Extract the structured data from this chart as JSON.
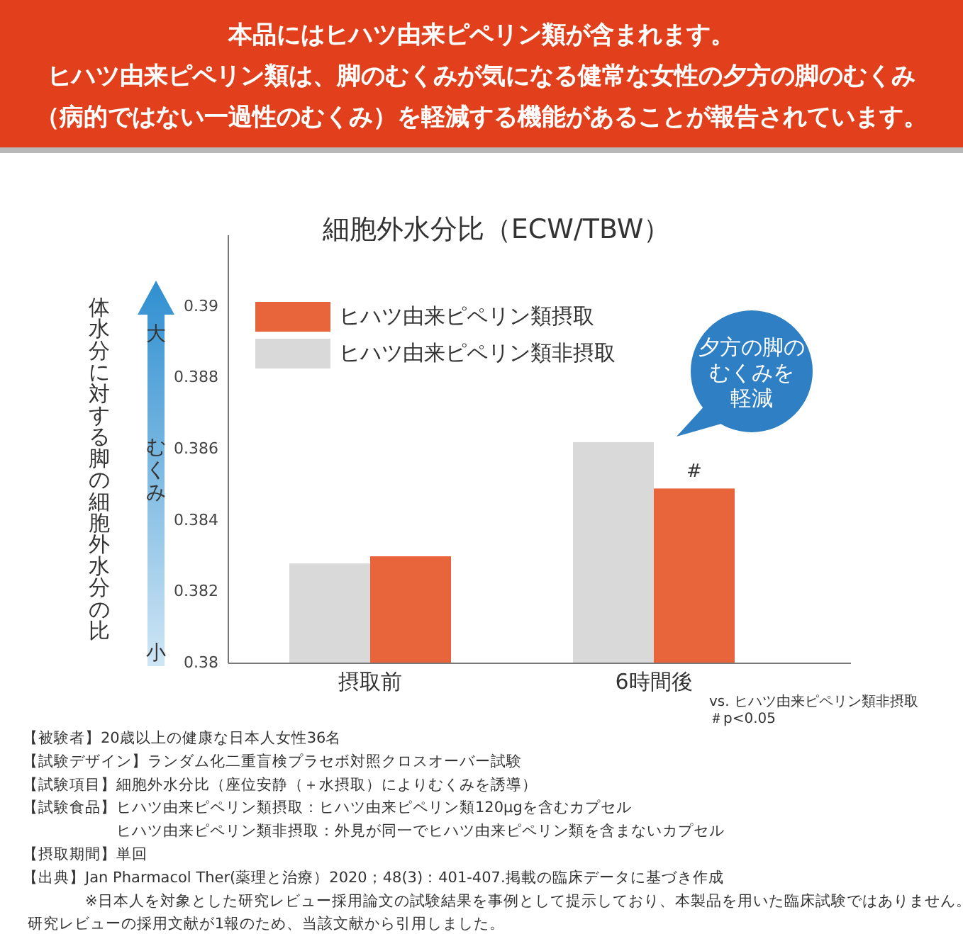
{
  "chart_data": {
    "type": "bar",
    "title": "本品にはヒハツ由来ピペリン類が含まれます。",
    "subtitle": "細胞外水分比（ECW/TBW）",
    "ylabel": "体水分に対する脚の細胞外水分の比",
    "categories": [
      "摂取前",
      "6時間後"
    ],
    "series": [
      {
        "name": "ヒハツ由来ピペリン類非摂取",
        "color": "#d9d9d9",
        "values": [
          0.3828,
          0.3862
        ]
      },
      {
        "name": "ヒハツ由来ピペリン類摂取",
        "color": "#e8643a",
        "values": [
          0.383,
          0.3849
        ]
      }
    ],
    "ylim": [
      0.38,
      0.392
    ],
    "yticks": [
      0.38,
      0.382,
      0.384,
      0.386,
      0.388,
      0.39
    ],
    "grid": false,
    "legend": "top left",
    "annotations": [
      {
        "text": "#",
        "x": "6時間後",
        "y": 0.3849
      },
      "ヒハツ由来ピペリン類は、脚のむくみが気になる健常な女性の夕方の脚のむくみ（病的ではない一過性のむくみ）を軽減する機能があることが報告されています。",
      "大",
      "むくみ",
      "小",
      "夕方の脚のむくみを軽減",
      "vs. ヒハツ由来ピペリン類非摂取",
      "＃p<0.05",
      "【被験者】20歳以上の健康な日本人女性36名",
      "【試験デザイン】ランダム化二重盲検プラセボ対照クロスオーバー試験",
      "【試験項目】細胞外水分比（座位安静（＋水摂取）によりむくみを誘導）",
      "【試験食品】ヒハツ由来ピペリン類摂取：ヒハツ由来ピペリン類120μgを含むカプセル",
      "　　　　　　ヒハツ由来ピペリン類非摂取：外見が同一でヒハツ由来ピペリン類を含まないカプセル",
      "【摂取期間】単回",
      "【出典】Jan Pharmacol Ther(薬理と治療）2020；48(3)：401-407.掲載の臨床データに基づき作成",
      "　　　　※日本人を対象とした研究レビュー採用論文の試験結果を事例として提示しており、本製品を用いた臨床試験ではありません。",
      " 研究レビューの採用文献が1報のため、当該文献から引用しました。"
    ]
  }
}
